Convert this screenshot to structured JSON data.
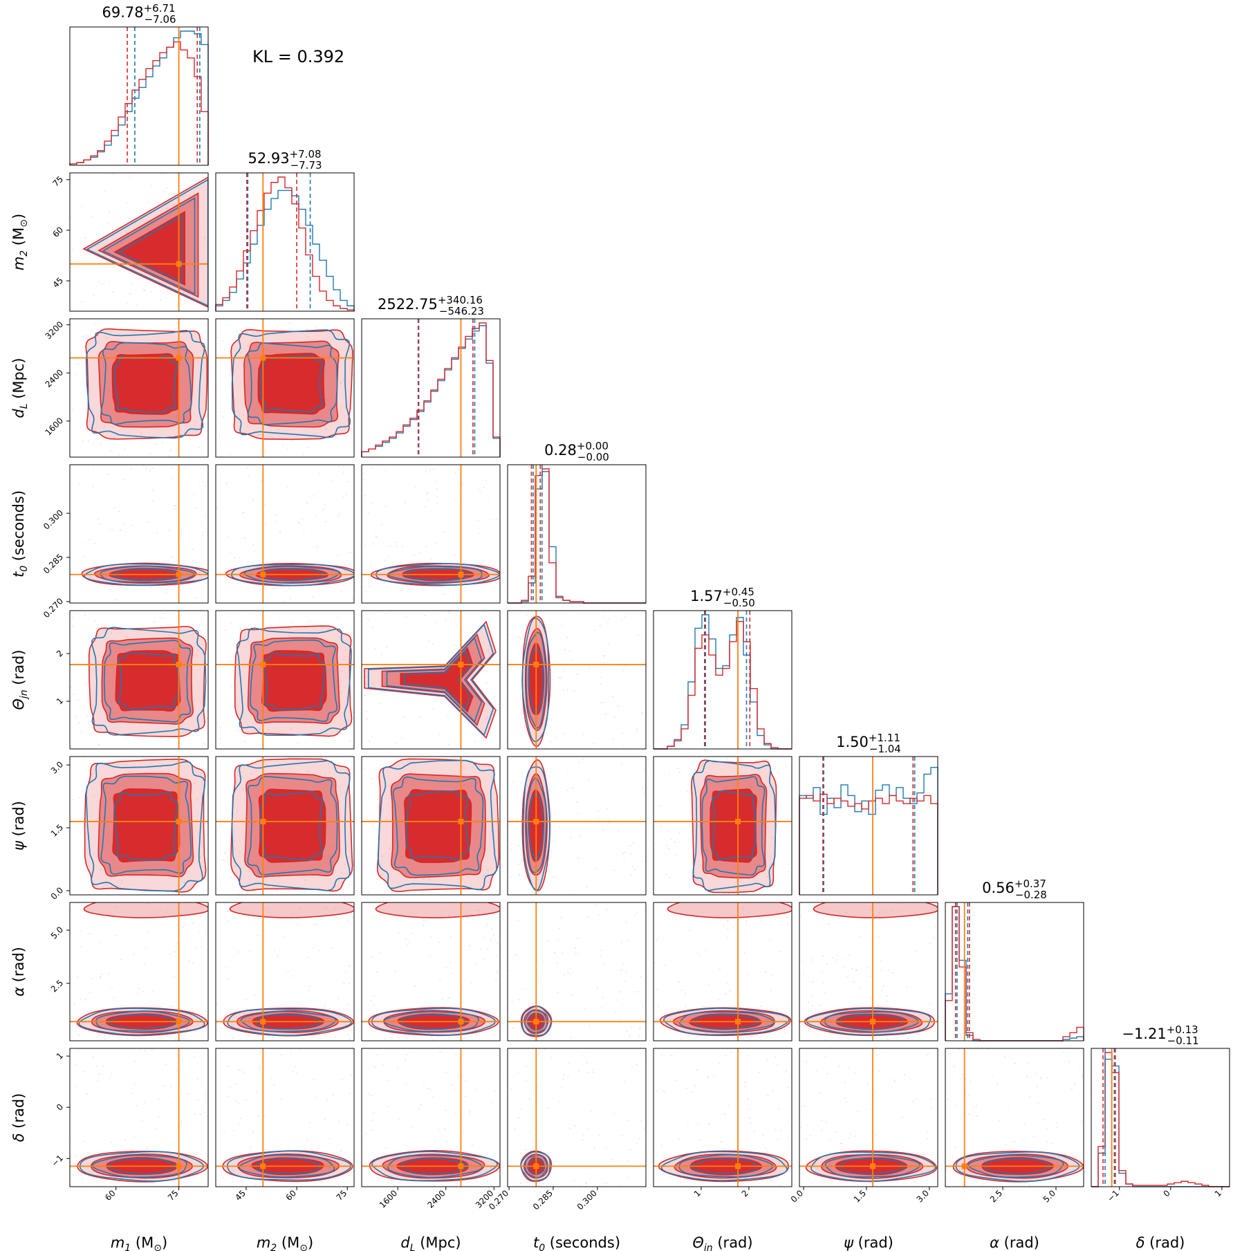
{
  "annotation": {
    "kl_label": "KL = 0.392"
  },
  "colors": {
    "run_a": "#d62728",
    "run_b": "#1f77b4",
    "truth": "#ff7f0e",
    "fill_a": "#d62728"
  },
  "chart_data": {
    "type": "corner",
    "title": "",
    "grid": false,
    "legend": "none",
    "kl_divergence": 0.392,
    "truth_values": {
      "m1": 75,
      "m2": 50,
      "dL": 2650,
      "t0": 0.2792,
      "theta_jn": 1.77,
      "psi": 1.65,
      "alpha": 0.7,
      "delta": -1.15
    },
    "parameters": [
      {
        "key": "m1",
        "label_main": "m",
        "label_sub": "1",
        "label_unit": " (M",
        "label_unit_end": "⊙)",
        "range": [
          49,
          82
        ],
        "ticks": [
          60,
          75
        ],
        "tick_labels": [
          "60",
          "75"
        ],
        "median": "69.78",
        "plus": "+6.71",
        "minus": "−7.06"
      },
      {
        "key": "m2",
        "label_main": "m",
        "label_sub": "2",
        "label_unit": " (M",
        "label_unit_end": "⊙)",
        "range": [
          36,
          77
        ],
        "ticks": [
          45,
          60,
          75
        ],
        "tick_labels": [
          "45",
          "60",
          "75"
        ],
        "median": "52.93",
        "plus": "+7.08",
        "minus": "−7.73"
      },
      {
        "key": "dL",
        "label_main": "d",
        "label_sub": "L",
        "label_unit": " (Mpc)",
        "label_unit_end": "",
        "range": [
          1000,
          3300
        ],
        "ticks": [
          1600,
          2400,
          3200
        ],
        "tick_labels": [
          "1600",
          "2400",
          "3200"
        ],
        "median": "2522.75",
        "plus": "+340.16",
        "minus": "−546.23"
      },
      {
        "key": "t0",
        "label_main": "t",
        "label_sub": "0",
        "label_unit": " (seconds)",
        "label_unit_end": "",
        "range": [
          0.2695,
          0.3165
        ],
        "ticks": [
          0.27,
          0.285,
          0.3
        ],
        "tick_labels": [
          "0.270",
          "0.285",
          "0.300"
        ],
        "median": "0.28",
        "plus": "+0.00",
        "minus": "−0.00"
      },
      {
        "key": "theta_jn",
        "label_main": "Θ",
        "label_sub": "jn",
        "label_unit": " (rad)",
        "label_unit_end": "",
        "range": [
          0.0,
          2.9
        ],
        "ticks": [
          1,
          2
        ],
        "tick_labels": [
          "1",
          "2"
        ],
        "median": "1.57",
        "plus": "+0.45",
        "minus": "−0.50"
      },
      {
        "key": "psi",
        "label_main": "ψ",
        "label_sub": "",
        "label_unit": " (rad)",
        "label_unit_end": "",
        "range": [
          -0.1,
          3.2
        ],
        "ticks": [
          0.0,
          1.5,
          3.0
        ],
        "tick_labels": [
          "0.0",
          "1.5",
          "3.0"
        ],
        "median": "1.50",
        "plus": "+1.11",
        "minus": "−1.04"
      },
      {
        "key": "alpha",
        "label_main": "α",
        "label_sub": "",
        "label_unit": " (rad)",
        "label_unit_end": "",
        "range": [
          -0.2,
          6.3
        ],
        "ticks": [
          2.5,
          5.0
        ],
        "tick_labels": [
          "2.5",
          "5.0"
        ],
        "median": "0.56",
        "plus": "+0.37",
        "minus": "−0.28"
      },
      {
        "key": "delta",
        "label_main": "δ",
        "label_sub": "",
        "label_unit": " (rad)",
        "label_unit_end": "",
        "range": [
          -1.55,
          1.15
        ],
        "ticks": [
          -1,
          0,
          1
        ],
        "tick_labels": [
          "−1",
          "0",
          "1"
        ],
        "median": "−1.21",
        "plus": "+0.13",
        "minus": "−0.11"
      }
    ],
    "marginals": [
      {
        "key": "m1",
        "quantiles_a": [
          62.7,
          77.8,
          79.4
        ],
        "quantiles_b": [
          64.5,
          78.6,
          80.0
        ],
        "hist_a": [
          0.01,
          0.02,
          0.04,
          0.07,
          0.11,
          0.18,
          0.26,
          0.36,
          0.46,
          0.56,
          0.64,
          0.72,
          0.78,
          0.84,
          0.88,
          0.92,
          0.86,
          0.8,
          0.66,
          0.4
        ],
        "hist_b": [
          0.01,
          0.02,
          0.04,
          0.06,
          0.1,
          0.15,
          0.22,
          0.3,
          0.4,
          0.5,
          0.58,
          0.66,
          0.74,
          0.8,
          0.88,
          0.95,
          1.0,
          1.0,
          0.98,
          0.9
        ]
      },
      {
        "key": "m2",
        "quantiles_a": [
          45.2,
          50.0,
          60.0
        ],
        "quantiles_b": [
          45.5,
          50.0,
          64.0
        ],
        "hist_a": [
          0.05,
          0.1,
          0.18,
          0.3,
          0.45,
          0.6,
          0.75,
          0.88,
          0.96,
          1.0,
          0.92,
          0.8,
          0.62,
          0.42,
          0.26,
          0.15,
          0.08,
          0.04,
          0.02,
          0.01
        ],
        "hist_b": [
          0.04,
          0.08,
          0.14,
          0.24,
          0.36,
          0.5,
          0.64,
          0.76,
          0.84,
          0.9,
          0.9,
          0.86,
          0.76,
          0.64,
          0.5,
          0.38,
          0.26,
          0.16,
          0.08,
          0.04
        ]
      },
      {
        "key": "dL",
        "quantiles_a": [
          1940,
          2650,
          2850
        ],
        "quantiles_b": [
          1950,
          2650,
          2880
        ],
        "hist_a": [
          0.04,
          0.06,
          0.09,
          0.12,
          0.15,
          0.19,
          0.24,
          0.29,
          0.35,
          0.42,
          0.5,
          0.58,
          0.66,
          0.74,
          0.82,
          0.9,
          0.96,
          1.0,
          0.72,
          0.15
        ],
        "hist_b": [
          0.04,
          0.06,
          0.08,
          0.11,
          0.14,
          0.18,
          0.23,
          0.28,
          0.34,
          0.41,
          0.49,
          0.57,
          0.65,
          0.73,
          0.81,
          0.88,
          0.94,
          0.98,
          0.7,
          0.14
        ]
      },
      {
        "key": "t0",
        "quantiles_a": [
          0.2776,
          0.2792,
          0.2806
        ],
        "quantiles_b": [
          0.2782,
          0.2792,
          0.2812
        ],
        "hist_a": [
          0.0,
          0.0,
          0.02,
          0.2,
          0.95,
          1.0,
          0.3,
          0.04,
          0.02,
          0.01,
          0.01,
          0.0,
          0.0,
          0.0,
          0.0,
          0.0,
          0.0,
          0.0,
          0.0,
          0.0
        ],
        "hist_b": [
          0.0,
          0.0,
          0.01,
          0.15,
          0.85,
          0.98,
          0.42,
          0.05,
          0.02,
          0.01,
          0.01,
          0.0,
          0.0,
          0.0,
          0.0,
          0.0,
          0.0,
          0.0,
          0.0,
          0.0
        ]
      },
      {
        "key": "theta_jn",
        "quantiles_a": [
          1.07,
          1.77,
          2.02
        ],
        "quantiles_b": [
          1.09,
          1.77,
          1.95
        ],
        "hist_a": [
          0.0,
          0.0,
          0.02,
          0.06,
          0.15,
          0.4,
          0.75,
          0.85,
          0.7,
          0.55,
          0.6,
          0.8,
          0.95,
          0.8,
          0.45,
          0.15,
          0.04,
          0.01,
          0.0,
          0.0
        ],
        "hist_b": [
          0.0,
          0.0,
          0.02,
          0.07,
          0.18,
          0.5,
          0.9,
          1.0,
          0.82,
          0.6,
          0.62,
          0.85,
          0.98,
          0.7,
          0.35,
          0.1,
          0.03,
          0.0,
          0.0,
          0.0
        ]
      },
      {
        "key": "psi",
        "quantiles_a": [
          0.46,
          1.65,
          2.61
        ],
        "quantiles_b": [
          0.48,
          1.65,
          2.65
        ],
        "hist_a": [
          0.72,
          0.74,
          0.7,
          0.75,
          0.68,
          0.72,
          0.7,
          0.66,
          0.68,
          0.64,
          0.7,
          0.72,
          0.68,
          0.74,
          0.7,
          0.68,
          0.72,
          0.7,
          0.74,
          0.68
        ],
        "hist_b": [
          0.74,
          0.72,
          0.8,
          0.6,
          0.72,
          0.65,
          0.82,
          0.74,
          0.62,
          0.7,
          0.6,
          0.78,
          0.82,
          0.74,
          0.8,
          0.72,
          0.68,
          0.76,
          0.9,
          0.95
        ]
      },
      {
        "key": "alpha",
        "quantiles_a": [
          0.28,
          0.7,
          0.93
        ],
        "quantiles_b": [
          0.35,
          0.7,
          0.85
        ],
        "hist_a": [
          0.3,
          1.0,
          0.55,
          0.06,
          0.01,
          0.0,
          0.0,
          0.0,
          0.0,
          0.0,
          0.0,
          0.0,
          0.0,
          0.0,
          0.0,
          0.0,
          0.0,
          0.03,
          0.06,
          0.1
        ],
        "hist_b": [
          0.35,
          1.0,
          0.6,
          0.04,
          0.0,
          0.0,
          0.0,
          0.0,
          0.0,
          0.0,
          0.0,
          0.0,
          0.0,
          0.0,
          0.0,
          0.0,
          0.0,
          0.01,
          0.02,
          0.03
        ]
      },
      {
        "key": "delta",
        "quantiles_a": [
          -1.32,
          -1.15,
          -1.08
        ],
        "quantiles_b": [
          -1.28,
          -1.15,
          -1.1
        ],
        "hist_a": [
          0.0,
          0.3,
          1.0,
          0.85,
          0.12,
          0.02,
          0.01,
          0.01,
          0.01,
          0.01,
          0.01,
          0.02,
          0.03,
          0.04,
          0.03,
          0.02,
          0.01,
          0.0,
          0.0,
          0.0
        ],
        "hist_b": [
          0.0,
          0.25,
          0.95,
          0.9,
          0.1,
          0.02,
          0.0,
          0.0,
          0.0,
          0.0,
          0.0,
          0.0,
          0.0,
          0.0,
          0.0,
          0.0,
          0.0,
          0.0,
          0.0,
          0.0
        ]
      }
    ],
    "joint_shapes": [
      {
        "x": "m2",
        "y": "m1",
        "shape": "triangle",
        "cx": 65,
        "cy": 50,
        "sx": 10,
        "sy": 6
      },
      {
        "x": "dL",
        "y": "m1",
        "shape": "box",
        "cx": 2600,
        "cy": 72,
        "sx": 500,
        "sy": 8
      },
      {
        "x": "dL",
        "y": "m2",
        "shape": "box",
        "cx": 2600,
        "cy": 52,
        "sx": 500,
        "sy": 9
      },
      {
        "x": "t0",
        "y": "any",
        "shape": "narrow_band",
        "center": 0.2792,
        "width": 0.0016
      },
      {
        "x": "theta_jn",
        "y": "dL",
        "shape": "v_shape",
        "center": 1.57,
        "width": 0.9
      },
      {
        "x": "alpha",
        "y": "any",
        "shape": "bimodal",
        "modes": [
          0.6,
          6.1
        ]
      },
      {
        "x": "delta",
        "y": "any",
        "shape": "band",
        "center": -1.18,
        "width": 0.18
      }
    ]
  }
}
